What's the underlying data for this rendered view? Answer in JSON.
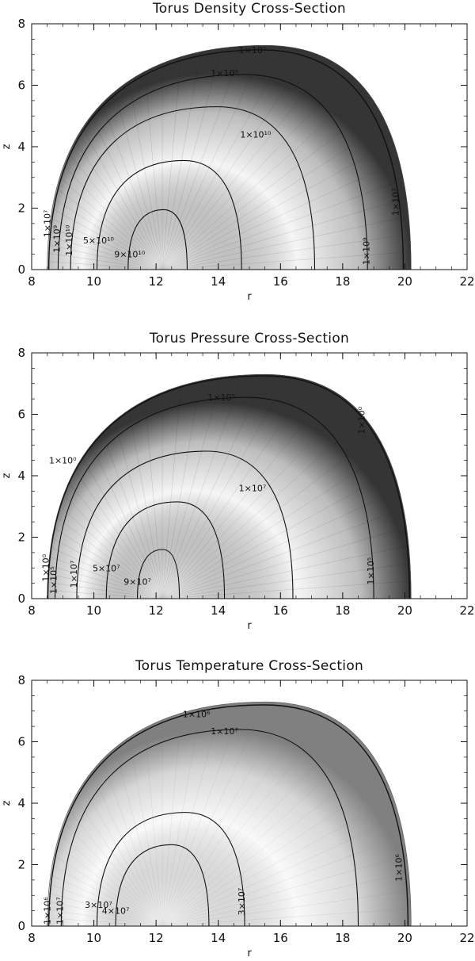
{
  "chart_data": [
    {
      "type": "contour",
      "title": "Torus Density Cross-Section",
      "xlabel": "r",
      "ylabel": "z",
      "xlim": [
        8,
        22
      ],
      "ylim": [
        0,
        8
      ],
      "xticks": [
        "8",
        "10",
        "12",
        "14",
        "16",
        "18",
        "20",
        "22"
      ],
      "yticks": [
        "0",
        "2",
        "4",
        "6",
        "8"
      ],
      "fill_color": "#111111",
      "boundary": {
        "r_in": 8.5,
        "r_out": 20.2,
        "z_max": 7.3
      },
      "contours": [
        {
          "label": "1×10⁷",
          "r_in": 8.55,
          "r_out": 19.95,
          "z_max": 7.15,
          "label_r": 15.1,
          "label_z": 7.15
        },
        {
          "label": "1×10⁹",
          "r_in": 8.85,
          "r_out": 18.8,
          "z_max": 6.35,
          "label_r": 14.2,
          "label_z": 6.4
        },
        {
          "label": "1×10¹⁰",
          "r_in": 9.25,
          "r_out": 17.1,
          "z_max": 5.3,
          "label_r": 15.2,
          "label_z": 4.4
        },
        {
          "label": "5×10¹⁰",
          "r_in": 10.1,
          "r_out": 14.75,
          "z_max": 3.55,
          "label_r": 10.15,
          "label_z": 0.95
        },
        {
          "label": "9×10¹⁰",
          "r_in": 11.1,
          "r_out": 13.0,
          "z_max": 1.95,
          "label_r": 11.15,
          "label_z": 0.5
        }
      ],
      "extra_labels": [
        {
          "label": "1×10⁷",
          "r": 19.8,
          "z": 2.2
        },
        {
          "label": "1×10⁹",
          "r": 18.85,
          "z": 0.6
        },
        {
          "label": "1×10⁹",
          "r": 8.9,
          "z": 1.0
        },
        {
          "label": "1×10¹⁰",
          "r": 9.3,
          "z": 0.95
        },
        {
          "label": "1×10⁷",
          "r": 8.6,
          "z": 1.5
        }
      ]
    },
    {
      "type": "contour",
      "title": "Torus Pressure Cross-Section",
      "xlabel": "r",
      "ylabel": "z",
      "xlim": [
        8,
        22
      ],
      "ylim": [
        0,
        8
      ],
      "xticks": [
        "8",
        "10",
        "12",
        "14",
        "16",
        "18",
        "20",
        "22"
      ],
      "yticks": [
        "0",
        "2",
        "4",
        "6",
        "8"
      ],
      "fill_color": "#111111",
      "boundary": {
        "r_in": 8.5,
        "r_out": 20.2,
        "z_max": 7.3
      },
      "contours": [
        {
          "label": "1×10⁰",
          "r_in": 8.52,
          "r_out": 20.15,
          "z_max": 7.25,
          "label_r": 9.0,
          "label_z": 4.5
        },
        {
          "label": "1×10⁵",
          "r_in": 8.75,
          "r_out": 19.0,
          "z_max": 6.55,
          "label_r": 14.1,
          "label_z": 6.55
        },
        {
          "label": "1×10⁷",
          "r_in": 9.45,
          "r_out": 16.4,
          "z_max": 4.8,
          "label_r": 15.1,
          "label_z": 3.6
        },
        {
          "label": "5×10⁷",
          "r_in": 10.4,
          "r_out": 14.2,
          "z_max": 3.15,
          "label_r": 10.4,
          "label_z": 1.0
        },
        {
          "label": "9×10⁷",
          "r_in": 11.4,
          "r_out": 12.75,
          "z_max": 1.6,
          "label_r": 11.4,
          "label_z": 0.55
        }
      ],
      "extra_labels": [
        {
          "label": "1×10⁰",
          "r": 18.7,
          "z": 5.8
        },
        {
          "label": "1×10⁵",
          "r": 19.0,
          "z": 0.9
        },
        {
          "label": "1×10⁰",
          "r": 8.55,
          "z": 1.0
        },
        {
          "label": "1×10⁵",
          "r": 8.8,
          "z": 0.6
        },
        {
          "label": "1×10⁷",
          "r": 9.45,
          "z": 0.8
        }
      ]
    },
    {
      "type": "contour",
      "title": "Torus Temperature Cross-Section",
      "xlabel": "r",
      "ylabel": "z",
      "xlim": [
        8,
        22
      ],
      "ylim": [
        0,
        8
      ],
      "xticks": [
        "8",
        "10",
        "12",
        "14",
        "16",
        "18",
        "20",
        "22"
      ],
      "yticks": [
        "0",
        "2",
        "4",
        "6",
        "8"
      ],
      "fill_color": "#6a6a6a",
      "boundary": {
        "r_in": 8.5,
        "r_out": 20.2,
        "z_max": 7.3
      },
      "contours": [
        {
          "label": "1×10⁶",
          "r_in": 8.55,
          "r_out": 20.1,
          "z_max": 7.2,
          "label_r": 13.3,
          "label_z": 6.9
        },
        {
          "label": "1×10⁷",
          "r_in": 8.95,
          "r_out": 18.5,
          "z_max": 6.4,
          "label_r": 14.2,
          "label_z": 6.35
        },
        {
          "label": "3×10⁷",
          "r_in": 10.1,
          "r_out": 14.85,
          "z_max": 3.7,
          "label_r": 10.15,
          "label_z": 0.7
        },
        {
          "label": "4×10⁷",
          "r_in": 10.7,
          "r_out": 13.7,
          "z_max": 2.65,
          "label_r": 10.7,
          "label_z": 0.5
        }
      ],
      "extra_labels": [
        {
          "label": "1×10⁶",
          "r": 19.9,
          "z": 1.9
        },
        {
          "label": "3×10⁷",
          "r": 14.85,
          "z": 0.8
        },
        {
          "label": "1×10⁶",
          "r": 8.6,
          "z": 0.5
        },
        {
          "label": "1×10⁷",
          "r": 9.0,
          "z": 0.5
        }
      ]
    }
  ]
}
